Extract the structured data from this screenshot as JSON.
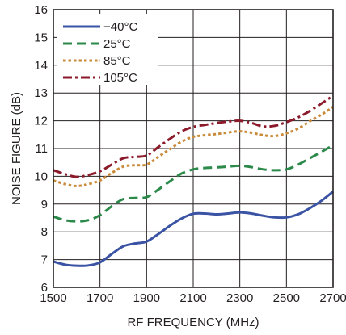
{
  "chart_data": {
    "type": "line",
    "title": "",
    "xlabel": "RF FREQUENCY (MHz)",
    "ylabel": "NOISE FIGURE (dB)",
    "xlim": [
      1500,
      2700
    ],
    "ylim": [
      6,
      16
    ],
    "x_ticks": [
      "1500",
      "1700",
      "1900",
      "2100",
      "2300",
      "2500",
      "2700"
    ],
    "y_ticks": [
      "6",
      "7",
      "8",
      "9",
      "10",
      "11",
      "12",
      "13",
      "14",
      "15",
      "16"
    ],
    "grid": true,
    "legend_position": "top-left",
    "series": [
      {
        "name": "−40°C",
        "color": "#3a53a4",
        "dash": "solid",
        "x": [
          1500,
          1550,
          1600,
          1650,
          1700,
          1750,
          1800,
          1850,
          1900,
          1950,
          2000,
          2050,
          2100,
          2150,
          2200,
          2250,
          2300,
          2350,
          2400,
          2450,
          2500,
          2550,
          2600,
          2650,
          2700
        ],
        "y": [
          6.93,
          6.82,
          6.78,
          6.79,
          6.9,
          7.2,
          7.48,
          7.58,
          7.65,
          7.92,
          8.22,
          8.48,
          8.65,
          8.66,
          8.63,
          8.66,
          8.7,
          8.66,
          8.58,
          8.52,
          8.52,
          8.63,
          8.85,
          9.12,
          9.45
        ]
      },
      {
        "name": "25°C",
        "color": "#2b8a4a",
        "dash": "long",
        "x": [
          1500,
          1550,
          1600,
          1650,
          1700,
          1750,
          1800,
          1850,
          1900,
          1950,
          2000,
          2050,
          2100,
          2150,
          2200,
          2250,
          2300,
          2350,
          2400,
          2450,
          2500,
          2550,
          2600,
          2650,
          2700
        ],
        "y": [
          8.55,
          8.42,
          8.38,
          8.42,
          8.6,
          8.92,
          9.18,
          9.22,
          9.25,
          9.52,
          9.82,
          10.1,
          10.25,
          10.3,
          10.32,
          10.35,
          10.38,
          10.33,
          10.25,
          10.22,
          10.25,
          10.42,
          10.65,
          10.88,
          11.12
        ]
      },
      {
        "name": "85°C",
        "color": "#c98a3a",
        "dash": "dot",
        "x": [
          1500,
          1550,
          1600,
          1650,
          1700,
          1750,
          1800,
          1850,
          1900,
          1950,
          2000,
          2050,
          2100,
          2150,
          2200,
          2250,
          2300,
          2350,
          2400,
          2450,
          2500,
          2550,
          2600,
          2650,
          2700
        ],
        "y": [
          9.85,
          9.72,
          9.65,
          9.72,
          9.85,
          10.12,
          10.35,
          10.4,
          10.42,
          10.7,
          10.98,
          11.25,
          11.42,
          11.48,
          11.52,
          11.58,
          11.62,
          11.57,
          11.48,
          11.45,
          11.55,
          11.72,
          11.98,
          12.22,
          12.5
        ]
      },
      {
        "name": "105°C",
        "color": "#8b1a2b",
        "dash": "dashdot",
        "x": [
          1500,
          1550,
          1600,
          1650,
          1700,
          1750,
          1800,
          1850,
          1900,
          1950,
          2000,
          2050,
          2100,
          2150,
          2200,
          2250,
          2300,
          2350,
          2400,
          2450,
          2500,
          2550,
          2600,
          2650,
          2700
        ],
        "y": [
          10.22,
          10.08,
          9.98,
          10.05,
          10.18,
          10.42,
          10.65,
          10.7,
          10.75,
          11.05,
          11.35,
          11.62,
          11.78,
          11.85,
          11.92,
          11.97,
          12.0,
          11.92,
          11.8,
          11.82,
          11.95,
          12.12,
          12.35,
          12.62,
          12.9
        ]
      }
    ]
  }
}
